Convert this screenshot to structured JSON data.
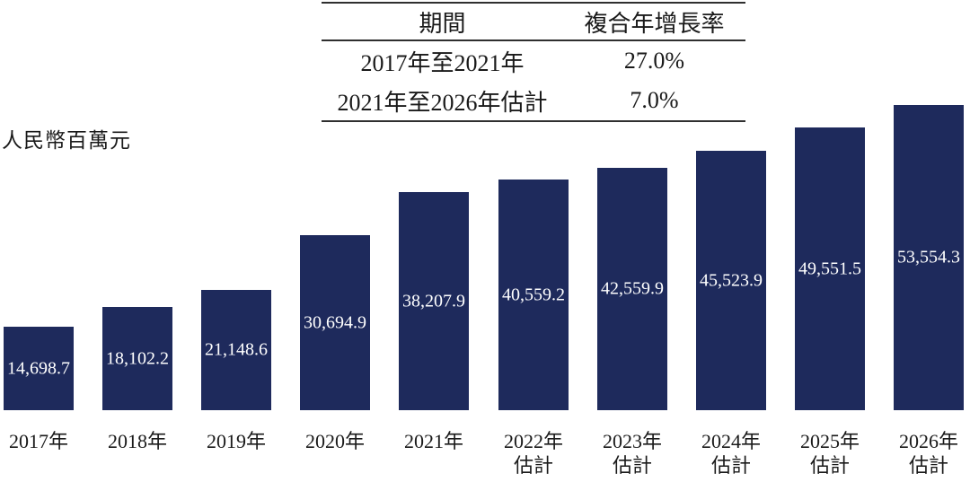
{
  "unit_label": "人民幣百萬元",
  "cagr_table": {
    "headers": [
      "期間",
      "複合年增長率"
    ],
    "rows": [
      {
        "period": "2017年至2021年",
        "cagr": "27.0%"
      },
      {
        "period": "2021年至2026年估計",
        "cagr": "7.0%"
      }
    ]
  },
  "chart_data": {
    "type": "bar",
    "title": "",
    "ylabel": "人民幣百萬元",
    "xlabel": "",
    "legend": [],
    "grid": false,
    "bar_color": "#1e2a5c",
    "value_label_color": "#ffffff",
    "categories": [
      "2017年",
      "2018年",
      "2019年",
      "2020年",
      "2021年",
      "2022年估計",
      "2023年估計",
      "2024年估計",
      "2025年估計",
      "2026年估計"
    ],
    "values": [
      14698.7,
      18102.2,
      21148.6,
      30694.9,
      38207.9,
      40559.2,
      42559.9,
      45523.9,
      49551.5,
      53554.3
    ],
    "value_labels": [
      "14,698.7",
      "18,102.2",
      "21,148.6",
      "30,694.9",
      "38,207.9",
      "40,559.2",
      "42,559.9",
      "45,523.9",
      "49,551.5",
      "53,554.3"
    ],
    "x_labels": [
      [
        "2017年"
      ],
      [
        "2018年"
      ],
      [
        "2019年"
      ],
      [
        "2020年"
      ],
      [
        "2021年"
      ],
      [
        "2022年",
        "估計"
      ],
      [
        "2023年",
        "估計"
      ],
      [
        "2024年",
        "估計"
      ],
      [
        "2025年",
        "估計"
      ],
      [
        "2026年",
        "估計"
      ]
    ],
    "ylim": [
      0,
      53554.3
    ],
    "annotations": {
      "cagr_2017_2021": "27.0%",
      "cagr_2021_2026e": "7.0%"
    }
  }
}
